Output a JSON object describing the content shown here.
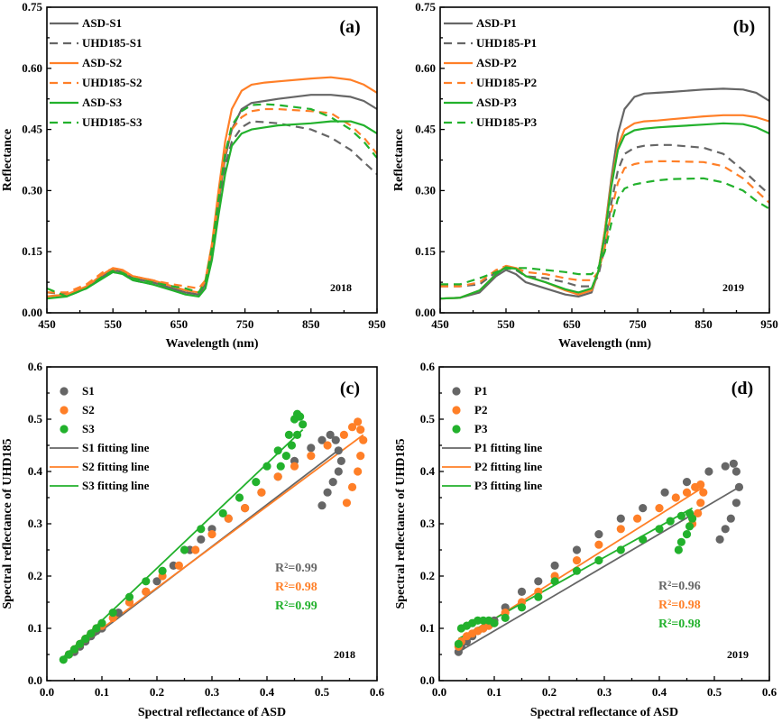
{
  "colors": {
    "gray": "#666666",
    "orange": "#ff7f27",
    "green": "#22b12c"
  },
  "chart_data": [
    {
      "panel": "(a)",
      "type": "line",
      "year": "2018",
      "xlabel": "Wavelength (nm)",
      "ylabel": "Reflectance",
      "xlim": [
        450,
        950
      ],
      "ylim": [
        0,
        0.75
      ],
      "xticks": [
        "450",
        "550",
        "650",
        "750",
        "850",
        "950"
      ],
      "yticks": [
        "0.00",
        "0.15",
        "0.30",
        "0.45",
        "0.60",
        "0.75"
      ],
      "x": [
        450,
        480,
        510,
        535,
        550,
        565,
        580,
        610,
        640,
        660,
        680,
        690,
        700,
        710,
        720,
        730,
        745,
        760,
        780,
        800,
        850,
        880,
        910,
        930,
        950
      ],
      "series": [
        {
          "name": "ASD-S1",
          "color": "gray",
          "dash": false,
          "values": [
            0.04,
            0.045,
            0.06,
            0.09,
            0.105,
            0.1,
            0.085,
            0.075,
            0.06,
            0.05,
            0.045,
            0.07,
            0.15,
            0.27,
            0.38,
            0.45,
            0.5,
            0.515,
            0.52,
            0.525,
            0.535,
            0.535,
            0.53,
            0.52,
            0.5
          ]
        },
        {
          "name": "UHD185-S1",
          "color": "gray",
          "dash": true,
          "values": [
            0.05,
            0.045,
            0.065,
            0.095,
            0.1,
            0.095,
            0.08,
            0.07,
            0.06,
            0.05,
            0.045,
            0.07,
            0.15,
            0.26,
            0.36,
            0.42,
            0.455,
            0.47,
            0.468,
            0.465,
            0.45,
            0.43,
            0.4,
            0.37,
            0.34
          ]
        },
        {
          "name": "ASD-S2",
          "color": "orange",
          "dash": false,
          "values": [
            0.04,
            0.045,
            0.065,
            0.095,
            0.11,
            0.105,
            0.09,
            0.08,
            0.065,
            0.055,
            0.05,
            0.08,
            0.17,
            0.3,
            0.42,
            0.5,
            0.545,
            0.56,
            0.565,
            0.568,
            0.575,
            0.578,
            0.572,
            0.56,
            0.54
          ]
        },
        {
          "name": "UHD185-S2",
          "color": "orange",
          "dash": true,
          "values": [
            0.05,
            0.05,
            0.07,
            0.1,
            0.108,
            0.1,
            0.09,
            0.08,
            0.07,
            0.065,
            0.06,
            0.08,
            0.16,
            0.28,
            0.39,
            0.45,
            0.48,
            0.495,
            0.5,
            0.5,
            0.495,
            0.49,
            0.46,
            0.43,
            0.39
          ]
        },
        {
          "name": "ASD-S3",
          "color": "green",
          "dash": false,
          "values": [
            0.035,
            0.04,
            0.06,
            0.085,
            0.1,
            0.095,
            0.08,
            0.07,
            0.055,
            0.045,
            0.04,
            0.06,
            0.13,
            0.24,
            0.34,
            0.41,
            0.44,
            0.45,
            0.455,
            0.46,
            0.465,
            0.47,
            0.47,
            0.46,
            0.44
          ]
        },
        {
          "name": "UHD185-S3",
          "color": "green",
          "dash": true,
          "values": [
            0.06,
            0.04,
            0.06,
            0.09,
            0.103,
            0.098,
            0.085,
            0.075,
            0.065,
            0.06,
            0.05,
            0.075,
            0.16,
            0.28,
            0.39,
            0.46,
            0.495,
            0.51,
            0.512,
            0.51,
            0.5,
            0.48,
            0.45,
            0.42,
            0.38
          ]
        }
      ]
    },
    {
      "panel": "(b)",
      "type": "line",
      "year": "2019",
      "xlabel": "Wavelength (nm)",
      "ylabel": "Reflectance",
      "xlim": [
        450,
        950
      ],
      "ylim": [
        0,
        0.75
      ],
      "xticks": [
        "450",
        "550",
        "650",
        "750",
        "850",
        "950"
      ],
      "yticks": [
        "0.00",
        "0.15",
        "0.30",
        "0.45",
        "0.60",
        "0.75"
      ],
      "x": [
        450,
        480,
        510,
        535,
        550,
        565,
        580,
        610,
        640,
        660,
        680,
        690,
        700,
        710,
        720,
        730,
        745,
        760,
        780,
        800,
        850,
        880,
        910,
        930,
        950
      ],
      "series": [
        {
          "name": "ASD-P1",
          "color": "gray",
          "dash": false,
          "values": [
            0.035,
            0.037,
            0.05,
            0.09,
            0.105,
            0.095,
            0.075,
            0.06,
            0.045,
            0.04,
            0.05,
            0.1,
            0.2,
            0.33,
            0.44,
            0.5,
            0.53,
            0.538,
            0.54,
            0.542,
            0.548,
            0.55,
            0.548,
            0.54,
            0.52
          ]
        },
        {
          "name": "UHD185-P1",
          "color": "gray",
          "dash": true,
          "values": [
            0.065,
            0.065,
            0.07,
            0.1,
            0.11,
            0.105,
            0.09,
            0.085,
            0.075,
            0.065,
            0.065,
            0.09,
            0.16,
            0.27,
            0.35,
            0.39,
            0.405,
            0.41,
            0.412,
            0.412,
            0.405,
            0.39,
            0.35,
            0.32,
            0.29
          ]
        },
        {
          "name": "ASD-P2",
          "color": "orange",
          "dash": false,
          "values": [
            0.035,
            0.037,
            0.055,
            0.095,
            0.115,
            0.11,
            0.09,
            0.075,
            0.055,
            0.045,
            0.055,
            0.1,
            0.2,
            0.32,
            0.41,
            0.45,
            0.465,
            0.47,
            0.472,
            0.475,
            0.482,
            0.485,
            0.485,
            0.48,
            0.47
          ]
        },
        {
          "name": "UHD185-P2",
          "color": "orange",
          "dash": true,
          "values": [
            0.065,
            0.065,
            0.075,
            0.105,
            0.115,
            0.11,
            0.1,
            0.095,
            0.085,
            0.08,
            0.08,
            0.1,
            0.16,
            0.25,
            0.32,
            0.355,
            0.365,
            0.37,
            0.372,
            0.372,
            0.37,
            0.36,
            0.33,
            0.3,
            0.27
          ]
        },
        {
          "name": "ASD-P3",
          "color": "green",
          "dash": false,
          "values": [
            0.035,
            0.037,
            0.055,
            0.095,
            0.112,
            0.108,
            0.09,
            0.075,
            0.058,
            0.05,
            0.06,
            0.1,
            0.19,
            0.31,
            0.4,
            0.435,
            0.448,
            0.452,
            0.455,
            0.457,
            0.462,
            0.465,
            0.463,
            0.455,
            0.44
          ]
        },
        {
          "name": "UHD185-P3",
          "color": "green",
          "dash": true,
          "values": [
            0.07,
            0.07,
            0.085,
            0.1,
            0.108,
            0.11,
            0.11,
            0.105,
            0.1,
            0.095,
            0.095,
            0.11,
            0.15,
            0.22,
            0.28,
            0.305,
            0.315,
            0.32,
            0.325,
            0.328,
            0.33,
            0.32,
            0.3,
            0.275,
            0.255
          ]
        }
      ]
    },
    {
      "panel": "(c)",
      "type": "scatter",
      "year": "2018",
      "xlabel": "Spectral reflectance of ASD",
      "ylabel": "Spectral reflectance of UHD185",
      "xlim": [
        0,
        0.6
      ],
      "ylim": [
        0,
        0.6
      ],
      "xticks": [
        "0.0",
        "0.1",
        "0.2",
        "0.3",
        "0.4",
        "0.5",
        "0.6"
      ],
      "yticks": [
        "0.0",
        "0.1",
        "0.2",
        "0.3",
        "0.4",
        "0.5",
        "0.6"
      ],
      "r2": [
        {
          "text": "R²=0.99",
          "color": "gray"
        },
        {
          "text": "R²=0.98",
          "color": "orange"
        },
        {
          "text": "R²=0.99",
          "color": "green"
        }
      ],
      "series": [
        {
          "name": "S1",
          "color": "gray",
          "x": [
            0.04,
            0.05,
            0.06,
            0.07,
            0.08,
            0.09,
            0.1,
            0.13,
            0.15,
            0.18,
            0.2,
            0.23,
            0.26,
            0.28,
            0.3,
            0.33,
            0.36,
            0.39,
            0.42,
            0.45,
            0.48,
            0.5,
            0.515,
            0.525,
            0.53,
            0.535,
            0.53,
            0.52,
            0.51,
            0.5
          ],
          "y": [
            0.05,
            0.055,
            0.065,
            0.075,
            0.085,
            0.095,
            0.1,
            0.13,
            0.15,
            0.17,
            0.19,
            0.22,
            0.25,
            0.27,
            0.29,
            0.31,
            0.33,
            0.36,
            0.39,
            0.42,
            0.445,
            0.46,
            0.47,
            0.46,
            0.44,
            0.42,
            0.4,
            0.38,
            0.36,
            0.335
          ]
        },
        {
          "name": "S2",
          "color": "orange",
          "x": [
            0.04,
            0.05,
            0.06,
            0.07,
            0.08,
            0.09,
            0.1,
            0.12,
            0.15,
            0.18,
            0.21,
            0.24,
            0.27,
            0.3,
            0.33,
            0.36,
            0.39,
            0.42,
            0.45,
            0.48,
            0.51,
            0.54,
            0.555,
            0.565,
            0.57,
            0.575,
            0.57,
            0.565,
            0.555,
            0.545
          ],
          "y": [
            0.05,
            0.06,
            0.07,
            0.08,
            0.09,
            0.1,
            0.105,
            0.12,
            0.15,
            0.17,
            0.2,
            0.22,
            0.25,
            0.28,
            0.31,
            0.33,
            0.36,
            0.39,
            0.41,
            0.43,
            0.45,
            0.47,
            0.485,
            0.495,
            0.48,
            0.46,
            0.43,
            0.4,
            0.37,
            0.34
          ]
        },
        {
          "name": "S3",
          "color": "green",
          "x": [
            0.03,
            0.04,
            0.05,
            0.06,
            0.07,
            0.08,
            0.09,
            0.1,
            0.12,
            0.15,
            0.18,
            0.21,
            0.25,
            0.28,
            0.32,
            0.35,
            0.38,
            0.4,
            0.42,
            0.44,
            0.45,
            0.455,
            0.46,
            0.465,
            0.455,
            0.445,
            0.435,
            0.425
          ],
          "y": [
            0.04,
            0.05,
            0.06,
            0.07,
            0.08,
            0.09,
            0.1,
            0.11,
            0.13,
            0.16,
            0.19,
            0.21,
            0.25,
            0.29,
            0.32,
            0.35,
            0.38,
            0.41,
            0.44,
            0.47,
            0.5,
            0.51,
            0.505,
            0.49,
            0.47,
            0.45,
            0.43,
            0.41
          ]
        }
      ],
      "fits": [
        {
          "name": "S1 fitting line",
          "color": "gray",
          "x": [
            0.03,
            0.535
          ],
          "y": [
            0.04,
            0.445
          ]
        },
        {
          "name": "S2 fitting line",
          "color": "orange",
          "x": [
            0.03,
            0.575
          ],
          "y": [
            0.045,
            0.47
          ]
        },
        {
          "name": "S3 fitting line",
          "color": "green",
          "x": [
            0.03,
            0.465
          ],
          "y": [
            0.045,
            0.48
          ]
        }
      ]
    },
    {
      "panel": "(d)",
      "type": "scatter",
      "year": "2019",
      "xlabel": "Spectral reflectance of ASD",
      "ylabel": "Spectral reflectance of UHD185",
      "xlim": [
        0,
        0.6
      ],
      "ylim": [
        0,
        0.6
      ],
      "xticks": [
        "0.0",
        "0.1",
        "0.2",
        "0.3",
        "0.4",
        "0.5",
        "0.6"
      ],
      "yticks": [
        "0.0",
        "0.1",
        "0.2",
        "0.3",
        "0.4",
        "0.5",
        "0.6"
      ],
      "r2": [
        {
          "text": "R²=0.96",
          "color": "gray"
        },
        {
          "text": "R²=0.98",
          "color": "orange"
        },
        {
          "text": "R²=0.98",
          "color": "green"
        }
      ],
      "series": [
        {
          "name": "P1",
          "color": "gray",
          "x": [
            0.035,
            0.04,
            0.05,
            0.06,
            0.07,
            0.08,
            0.09,
            0.1,
            0.12,
            0.15,
            0.18,
            0.21,
            0.25,
            0.29,
            0.33,
            0.37,
            0.41,
            0.45,
            0.49,
            0.52,
            0.535,
            0.54,
            0.545,
            0.54,
            0.53,
            0.52,
            0.51
          ],
          "y": [
            0.055,
            0.065,
            0.075,
            0.085,
            0.095,
            0.1,
            0.11,
            0.115,
            0.14,
            0.17,
            0.19,
            0.22,
            0.25,
            0.28,
            0.31,
            0.33,
            0.36,
            0.38,
            0.4,
            0.41,
            0.415,
            0.4,
            0.37,
            0.34,
            0.31,
            0.29,
            0.27
          ]
        },
        {
          "name": "P2",
          "color": "orange",
          "x": [
            0.035,
            0.04,
            0.05,
            0.06,
            0.07,
            0.08,
            0.09,
            0.1,
            0.12,
            0.15,
            0.18,
            0.21,
            0.25,
            0.29,
            0.33,
            0.36,
            0.4,
            0.43,
            0.45,
            0.465,
            0.475,
            0.48,
            0.475,
            0.47,
            0.46
          ],
          "y": [
            0.065,
            0.075,
            0.085,
            0.09,
            0.095,
            0.1,
            0.105,
            0.11,
            0.13,
            0.15,
            0.17,
            0.2,
            0.23,
            0.26,
            0.29,
            0.31,
            0.33,
            0.35,
            0.36,
            0.37,
            0.375,
            0.36,
            0.34,
            0.32,
            0.3
          ]
        },
        {
          "name": "P3",
          "color": "green",
          "x": [
            0.035,
            0.04,
            0.05,
            0.06,
            0.07,
            0.08,
            0.09,
            0.1,
            0.12,
            0.15,
            0.18,
            0.21,
            0.25,
            0.29,
            0.33,
            0.37,
            0.4,
            0.42,
            0.44,
            0.455,
            0.46,
            0.455,
            0.45,
            0.44,
            0.435
          ],
          "y": [
            0.07,
            0.1,
            0.105,
            0.11,
            0.115,
            0.115,
            0.115,
            0.11,
            0.12,
            0.14,
            0.16,
            0.19,
            0.21,
            0.23,
            0.25,
            0.27,
            0.29,
            0.305,
            0.315,
            0.32,
            0.31,
            0.295,
            0.28,
            0.265,
            0.25
          ]
        }
      ],
      "fits": [
        {
          "name": "P1 fitting line",
          "color": "gray",
          "x": [
            0.035,
            0.545
          ],
          "y": [
            0.055,
            0.37
          ]
        },
        {
          "name": "P2 fitting line",
          "color": "orange",
          "x": [
            0.035,
            0.48
          ],
          "y": [
            0.075,
            0.37
          ]
        },
        {
          "name": "P3 fitting line",
          "color": "green",
          "x": [
            0.035,
            0.46
          ],
          "y": [
            0.08,
            0.33
          ]
        }
      ]
    }
  ]
}
